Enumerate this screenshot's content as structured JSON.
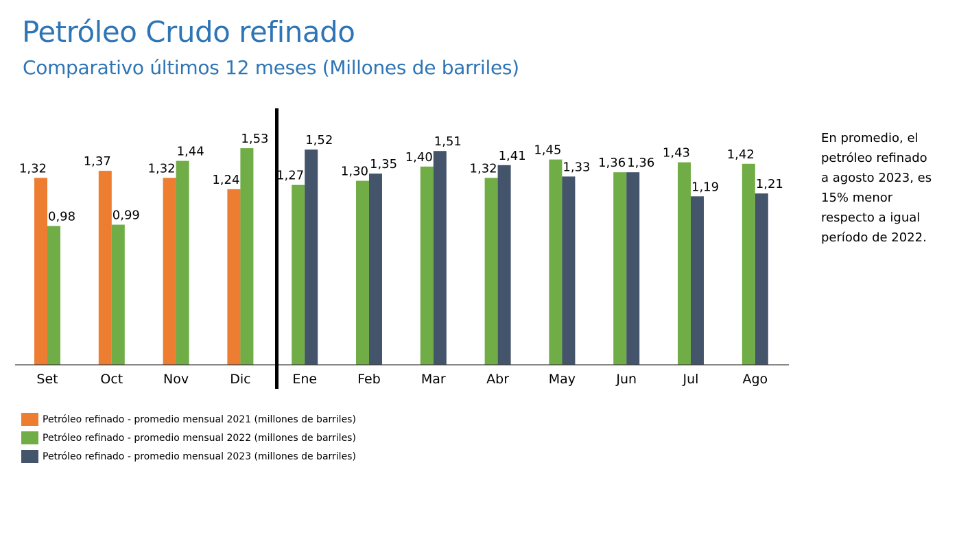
{
  "chart_data": {
    "type": "bar",
    "title": "Petróleo Crudo refinado",
    "subtitle": "Comparativo últimos 12 meses (Millones de barriles)",
    "categories": [
      "Set",
      "Oct",
      "Nov",
      "Dic",
      "Ene",
      "Feb",
      "Mar",
      "Abr",
      "May",
      "Jun",
      "Jul",
      "Ago"
    ],
    "series": [
      {
        "name": "Petróleo refinado - promedio mensual 2021 (millones de barriles)",
        "color": "#ed7d31",
        "values": [
          1.32,
          1.37,
          1.32,
          1.24,
          null,
          null,
          null,
          null,
          null,
          null,
          null,
          null
        ],
        "labels": [
          "1,32",
          "1,37",
          "1,32",
          "1,24",
          null,
          null,
          null,
          null,
          null,
          null,
          null,
          null
        ]
      },
      {
        "name": "Petróleo refinado - promedio mensual 2022 (millones de barriles)",
        "color": "#70ad47",
        "values": [
          0.98,
          0.99,
          1.44,
          1.53,
          1.27,
          1.3,
          1.4,
          1.32,
          1.45,
          1.36,
          1.43,
          1.42
        ],
        "labels": [
          "0,98",
          "0,99",
          "1,44",
          "1,53",
          "1,27",
          "1,30",
          "1,40",
          "1,32",
          "1,45",
          "1,36",
          "1,43",
          "1,42"
        ]
      },
      {
        "name": "Petróleo refinado - promedio mensual 2023 (millones de barriles)",
        "color": "#44546a",
        "values": [
          null,
          null,
          null,
          null,
          1.52,
          1.35,
          1.51,
          1.41,
          1.33,
          1.36,
          1.19,
          1.21
        ],
        "labels": [
          null,
          null,
          null,
          null,
          "1,52",
          "1,35",
          "1,51",
          "1,41",
          "1,33",
          "1,36",
          "1,19",
          "1,21"
        ]
      }
    ],
    "ylim": [
      0,
      1.53
    ],
    "grid": false,
    "legend_position": "bottom-left",
    "annotation_lines": [
      "En promedio, el",
      "petróleo refinado",
      "a agosto 2023, es",
      "15% menor",
      "respecto a igual",
      "período de 2022."
    ]
  }
}
